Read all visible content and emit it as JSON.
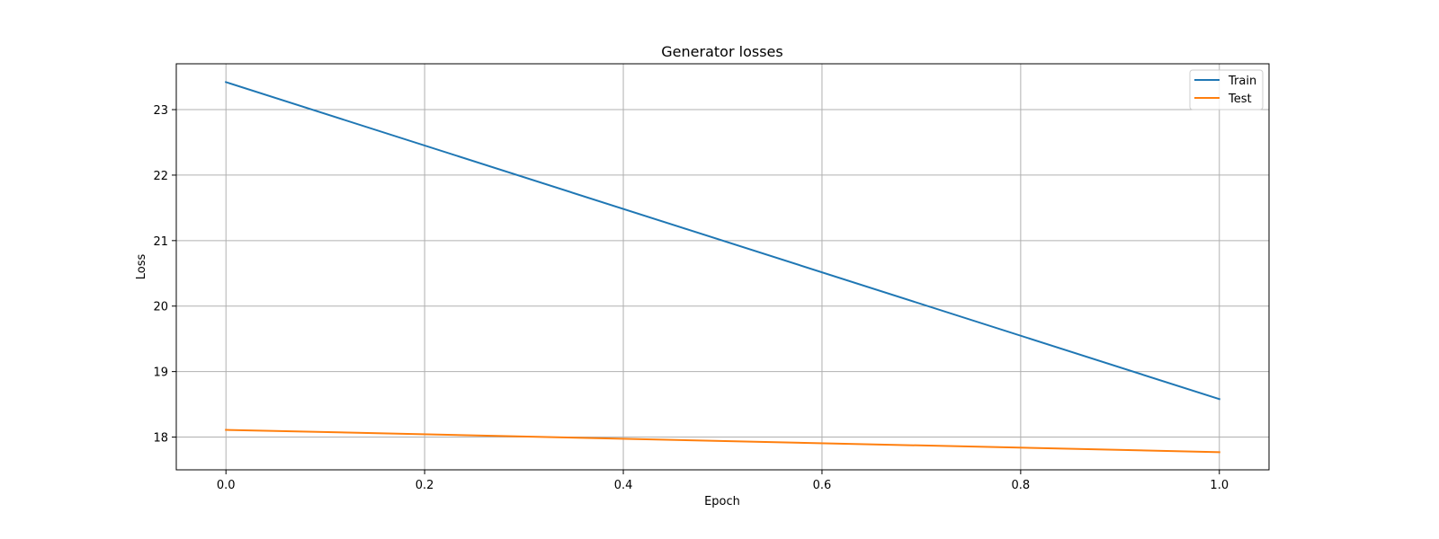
{
  "chart_data": {
    "type": "line",
    "title": "Generator losses",
    "xlabel": "Epoch",
    "ylabel": "Loss",
    "xlim": [
      -0.05,
      1.05
    ],
    "ylim": [
      17.5,
      23.7
    ],
    "xticks": [
      0.0,
      0.2,
      0.4,
      0.6,
      0.8,
      1.0
    ],
    "xtick_labels": [
      "0.0",
      "0.2",
      "0.4",
      "0.6",
      "0.8",
      "1.0"
    ],
    "yticks": [
      18,
      19,
      20,
      21,
      22,
      23
    ],
    "ytick_labels": [
      "18",
      "19",
      "20",
      "21",
      "22",
      "23"
    ],
    "grid": true,
    "legend_position": "top-right",
    "x": [
      0,
      1
    ],
    "series": [
      {
        "name": "Train",
        "color": "#1f77b4",
        "values": [
          23.42,
          18.58
        ]
      },
      {
        "name": "Test",
        "color": "#ff7f0e",
        "values": [
          18.11,
          17.77
        ]
      }
    ]
  }
}
